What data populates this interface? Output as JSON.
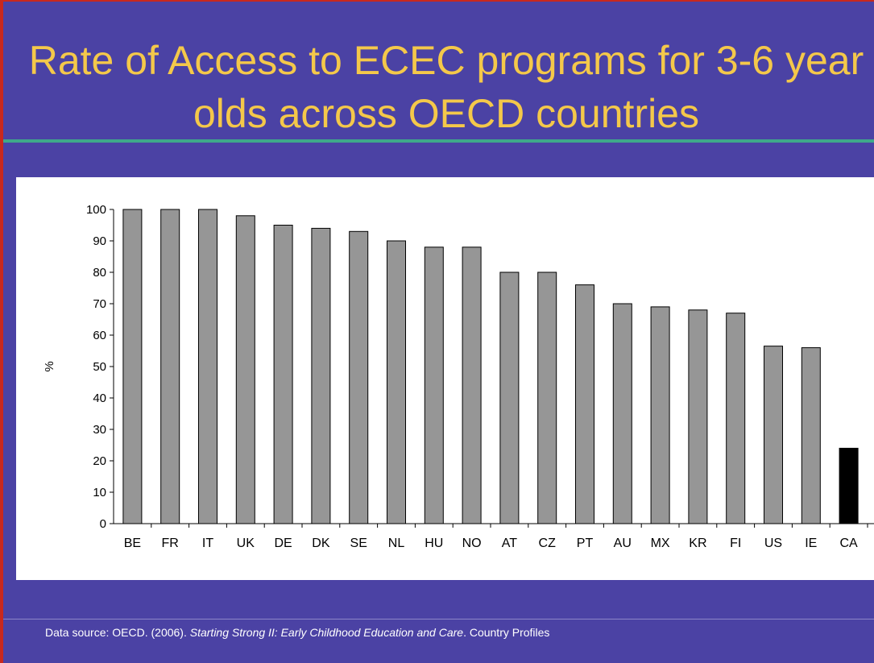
{
  "slide": {
    "title": "Rate of Access to ECEC programs for 3-6 year olds across OECD countries",
    "footer": {
      "prefix": "Data source: OECD. (2006). ",
      "italic": "Starting Strong II: Early Childhood Education and Care",
      "suffix": ". Country Profiles"
    }
  },
  "colors": {
    "background": "#4b42a4",
    "title": "#f4c84a",
    "rule": "#3fa98a",
    "bar": "#969696",
    "highlight_bar": "#000000"
  },
  "chart_data": {
    "type": "bar",
    "title": "",
    "xlabel": "",
    "ylabel": "%",
    "ylim": [
      0,
      100
    ],
    "yticks": [
      0,
      10,
      20,
      30,
      40,
      50,
      60,
      70,
      80,
      90,
      100
    ],
    "grid": false,
    "legend": "none",
    "categories": [
      "BE",
      "FR",
      "IT",
      "UK",
      "DE",
      "DK",
      "SE",
      "NL",
      "HU",
      "NO",
      "AT",
      "CZ",
      "PT",
      "AU",
      "MX",
      "KR",
      "FI",
      "US",
      "IE",
      "CA"
    ],
    "values": [
      100,
      100,
      100,
      98,
      95,
      94,
      93,
      90,
      88,
      88,
      80,
      80,
      76,
      70,
      69,
      68,
      67,
      56.5,
      56,
      24
    ],
    "highlight": "CA"
  }
}
